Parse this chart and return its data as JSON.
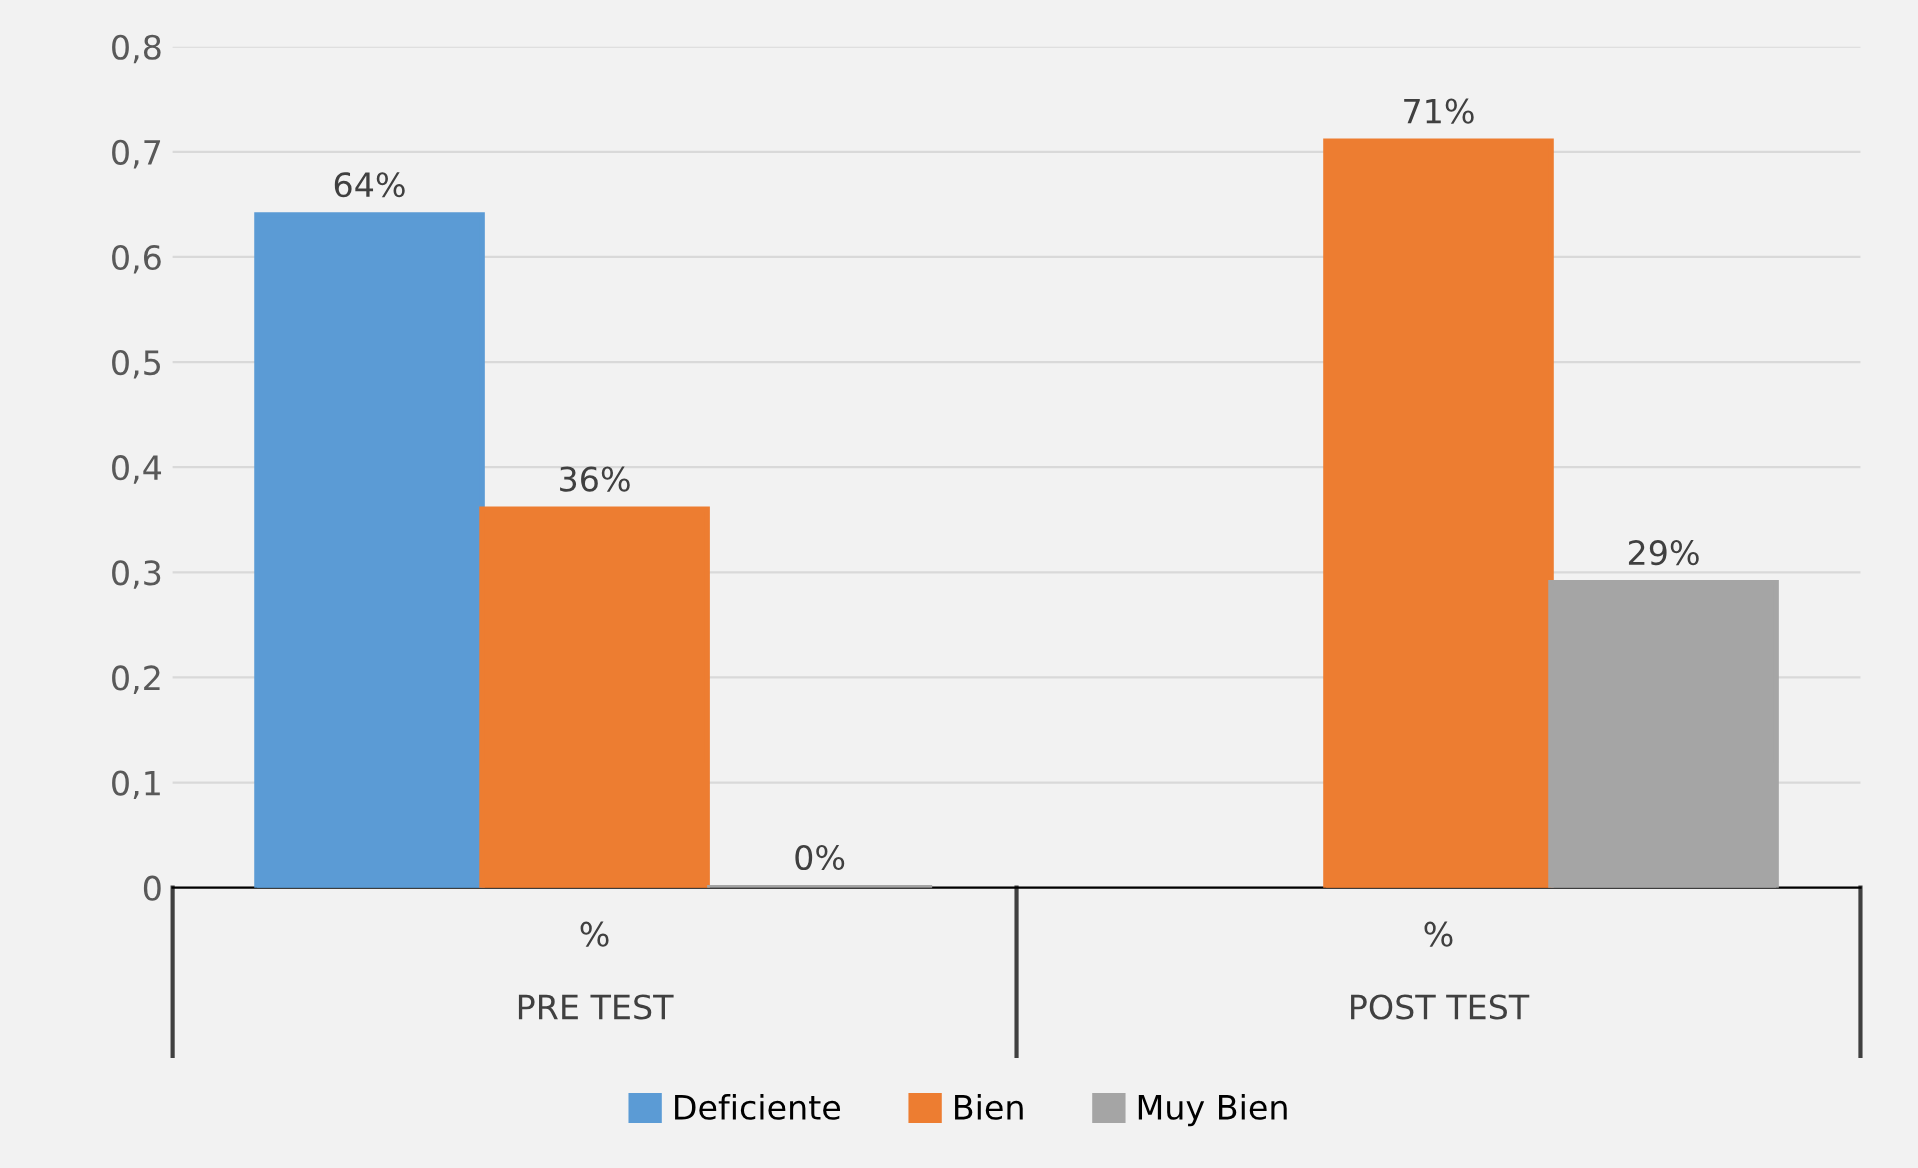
{
  "chart_data": {
    "type": "bar",
    "categories": [
      "%\nPRE TEST",
      "%\nPOST TEST"
    ],
    "series": [
      {
        "name": "Deficiente",
        "color": "#5b9bd5",
        "values": [
          0.64,
          null
        ],
        "value_labels": [
          "64%",
          null
        ]
      },
      {
        "name": "Bien",
        "color": "#ed7d31",
        "values": [
          0.36,
          0.71
        ],
        "value_labels": [
          "36%",
          "71%"
        ]
      },
      {
        "name": "Muy Bien",
        "color": "#a5a5a5",
        "values": [
          0,
          0.29
        ],
        "value_labels": [
          "0%",
          "29%"
        ]
      }
    ],
    "ylim": [
      0,
      0.8
    ],
    "yticks": [
      0,
      {
        "value": 0.1,
        "label": "0,1"
      },
      {
        "value": 0.2,
        "label": "0,2"
      },
      {
        "value": 0.3,
        "label": "0,3"
      },
      {
        "value": 0.4,
        "label": "0,4"
      },
      {
        "value": 0.5,
        "label": "0,5"
      },
      {
        "value": 0.6,
        "label": "0,6"
      },
      {
        "value": 0.7,
        "label": "0,7"
      },
      {
        "value": 0.8,
        "label": "0,8"
      }
    ],
    "grid": "y",
    "legend": "bottom"
  }
}
